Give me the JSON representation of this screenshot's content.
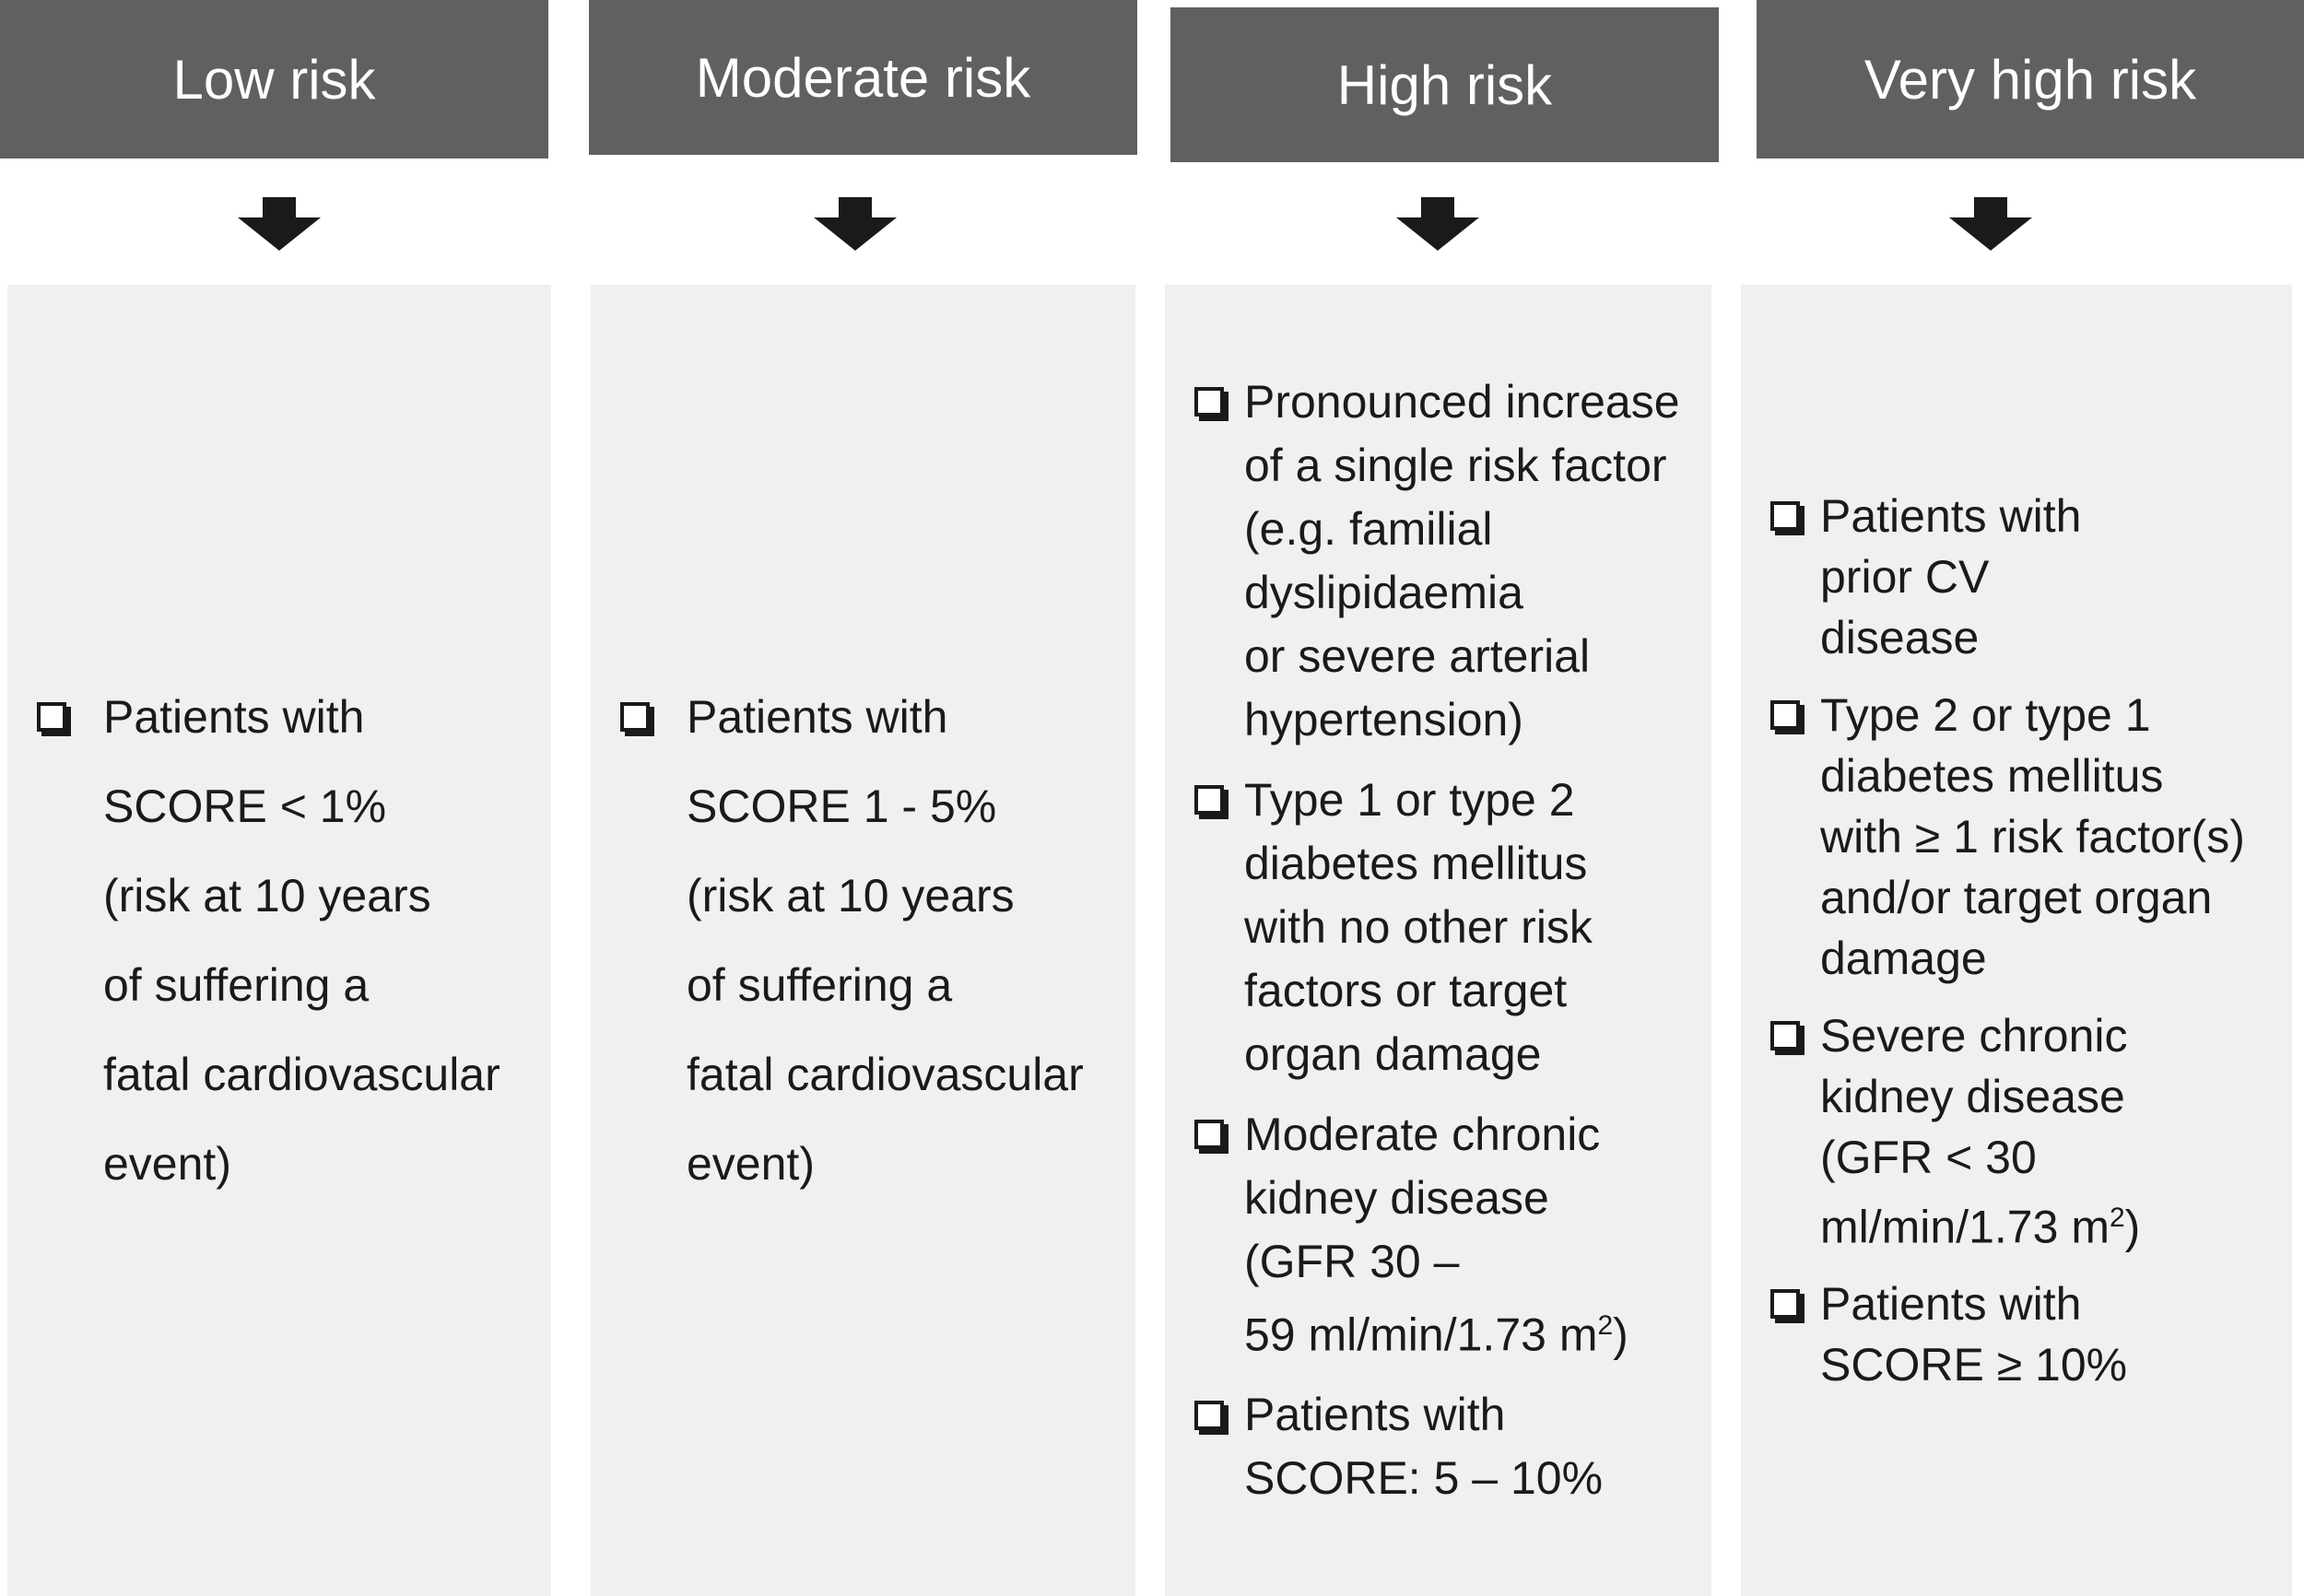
{
  "columns": [
    {
      "title": "Low risk",
      "items": [
        {
          "lines": [
            "Patients with",
            "SCORE < 1%",
            "(risk at 10 years",
            "of suffering a",
            "fatal cardiovascular",
            "event)"
          ]
        }
      ]
    },
    {
      "title": "Moderate risk",
      "items": [
        {
          "lines": [
            "Patients with",
            "SCORE 1 - 5%",
            "(risk at 10 years",
            "of suffering a",
            "fatal cardiovascular",
            "event)"
          ]
        }
      ]
    },
    {
      "title": "High risk",
      "items": [
        {
          "lines": [
            "Pronounced increase",
            "of a single risk factor",
            "(e.g. familial",
            "dyslipidaemia",
            "or severe arterial",
            "hypertension)"
          ]
        },
        {
          "lines": [
            "Type 1 or type 2",
            "diabetes mellitus",
            "with no other risk",
            "factors or target",
            "organ damage"
          ]
        },
        {
          "lines": [
            "Moderate chronic",
            "kidney disease",
            "(GFR 30 –",
            [
              {
                "text": "59 ml/min/1.73 m"
              },
              {
                "sup": "2"
              },
              {
                "text": ")"
              }
            ]
          ]
        },
        {
          "lines": [
            "Patients with",
            "SCORE: 5 – 10%"
          ]
        }
      ]
    },
    {
      "title": "Very high risk",
      "items": [
        {
          "lines": [
            "Patients with",
            "prior CV",
            "disease"
          ]
        },
        {
          "lines": [
            "Type 2 or type 1",
            "diabetes mellitus",
            "with ≥ 1 risk factor(s)",
            "and/or target organ",
            "damage"
          ]
        },
        {
          "lines": [
            "Severe chronic",
            "kidney disease",
            "(GFR < 30",
            [
              {
                "text": "ml/min/1.73 m"
              },
              {
                "sup": "2"
              },
              {
                "text": ")"
              }
            ]
          ]
        },
        {
          "lines": [
            "Patients with",
            "SCORE ≥ 10%"
          ]
        }
      ]
    }
  ]
}
